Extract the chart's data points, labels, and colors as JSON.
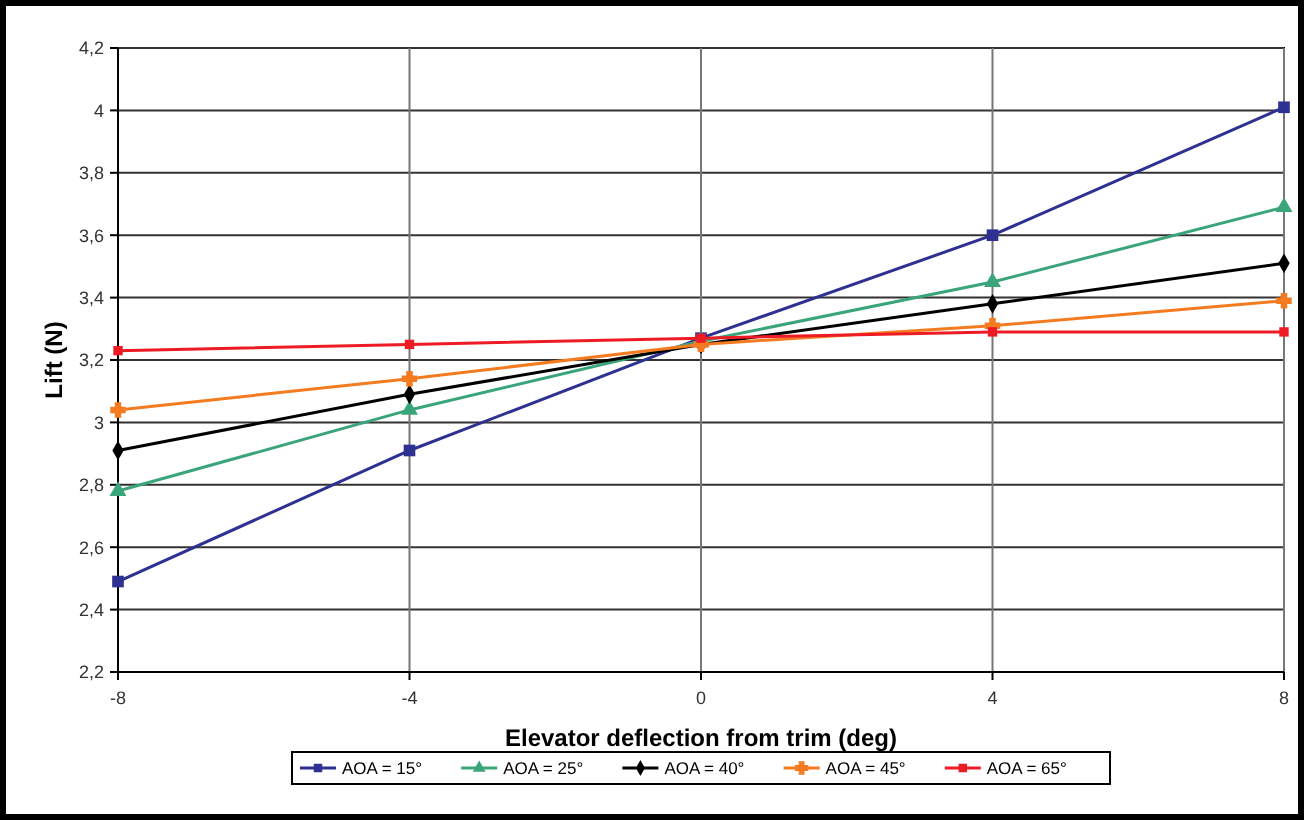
{
  "chart_data": {
    "type": "line",
    "xlabel": "Elevator deflection from trim (deg)",
    "ylabel": "Lift (N)",
    "x": [
      -8,
      -4,
      0,
      4,
      8
    ],
    "xlim": [
      -8,
      8
    ],
    "xticks": [
      -8,
      -4,
      0,
      4,
      8
    ],
    "ylim": [
      2.2,
      4.2
    ],
    "yticks": [
      {
        "value": 2.2,
        "label": "2,2"
      },
      {
        "value": 2.4,
        "label": "2,4"
      },
      {
        "value": 2.6,
        "label": "2,6"
      },
      {
        "value": 2.8,
        "label": "2,8"
      },
      3,
      {
        "value": 3.2,
        "label": "3,2"
      },
      {
        "value": 3.4,
        "label": "3,4"
      },
      {
        "value": 3.6,
        "label": "3,6"
      },
      {
        "value": 3.8,
        "label": "3,8"
      },
      4,
      {
        "value": 4.2,
        "label": "4,2"
      }
    ],
    "grid": true,
    "legend": "bottom",
    "line_style": "solid",
    "series": [
      {
        "name": "AOA = 15°",
        "color": "#2e3192",
        "marker": "square",
        "values": [
          2.49,
          2.91,
          3.27,
          3.6,
          4.01
        ]
      },
      {
        "name": "AOA = 25°",
        "color": "#3aa57a",
        "marker": "triangle",
        "values": [
          2.78,
          3.04,
          3.26,
          3.45,
          3.69
        ]
      },
      {
        "name": "AOA = 40°",
        "color": "#000000",
        "marker": "diamond",
        "values": [
          2.91,
          3.09,
          3.25,
          3.38,
          3.51
        ]
      },
      {
        "name": "AOA = 45°",
        "color": "#f47b20",
        "marker": "cross",
        "values": [
          3.04,
          3.14,
          3.25,
          3.31,
          3.39
        ]
      },
      {
        "name": "AOA = 65°",
        "color": "#ed1c24",
        "marker": "square",
        "values": [
          3.23,
          3.25,
          3.27,
          3.29,
          3.29
        ]
      }
    ]
  }
}
